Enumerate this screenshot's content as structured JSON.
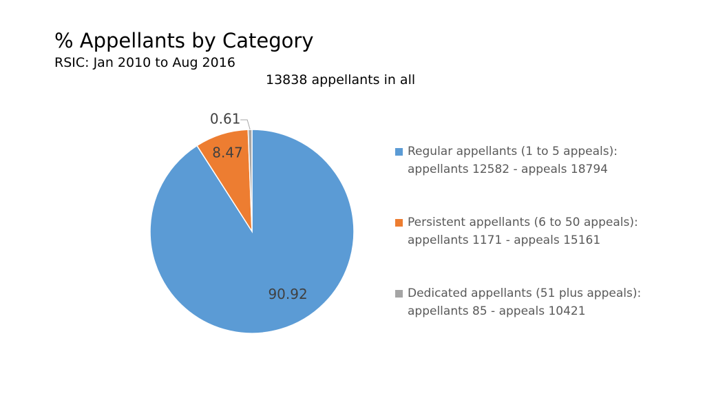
{
  "chart_data": {
    "type": "pie",
    "title": "% Appellants by Category",
    "subtitle": "RSIC: Jan 2010 to Aug 2016",
    "annotation": "13838 appellants in all",
    "categories": [
      "Regular appellants (1 to 5 appeals):\nappellants 12582 - appeals 18794",
      "Persistent appellants (6 to 50 appeals):\nappellants 1171 - appeals 15161",
      "Dedicated appellants (51 plus appeals):\nappellants 85 - appeals 10421"
    ],
    "values": [
      90.92,
      8.47,
      0.61
    ],
    "colors": [
      "#5b9bd5",
      "#ed7d31",
      "#a5a5a5"
    ],
    "legend": "right"
  }
}
